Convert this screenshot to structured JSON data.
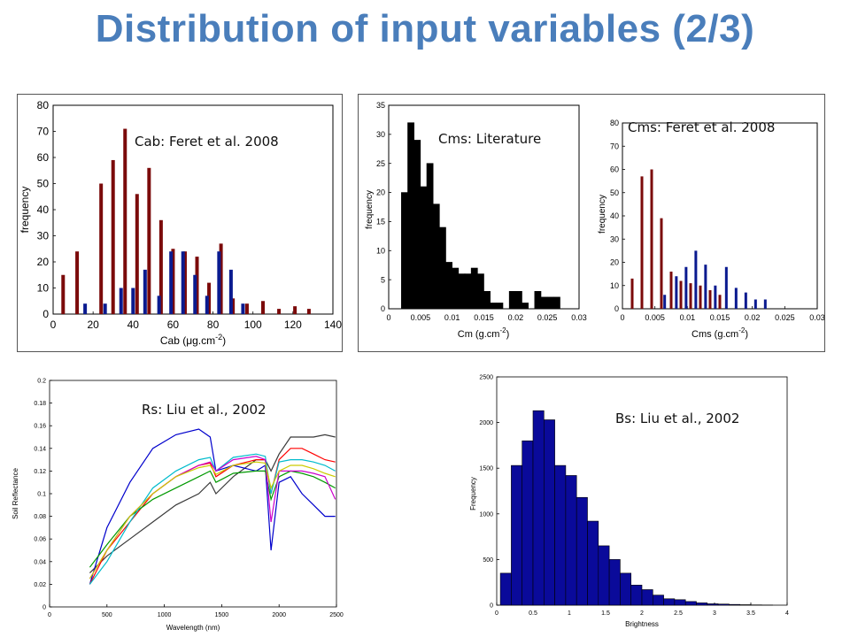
{
  "title": "Distribution of input variables (2/3)",
  "colors": {
    "title": "#4a7ebb",
    "red": "#7b0a0a",
    "blue": "#0a1a8f",
    "black": "#000000"
  },
  "chart_data": [
    {
      "id": "cab",
      "type": "bar",
      "annotation": "Cab: Feret et al. 2008",
      "xlabel": "Cab (μg.cm",
      "xlabel_sup": "-2",
      "xlabel_end": ")",
      "ylabel": "frequency",
      "xlim": [
        0,
        140
      ],
      "ylim": [
        0,
        80
      ],
      "xticks": [
        0,
        20,
        40,
        60,
        80,
        100,
        120,
        140
      ],
      "yticks": [
        0,
        10,
        20,
        30,
        40,
        50,
        60,
        70,
        80
      ],
      "series": [
        {
          "color": "#7b0a0a",
          "x": [
            5,
            12,
            24,
            30,
            36,
            42,
            48,
            54,
            60,
            66,
            72,
            78,
            84,
            90,
            97,
            105,
            113,
            121,
            128
          ],
          "values": [
            15,
            24,
            50,
            59,
            71,
            46,
            56,
            36,
            25,
            24,
            22,
            12,
            27,
            6,
            4,
            5,
            2,
            3,
            2
          ]
        },
        {
          "color": "#0a1a8f",
          "x": [
            16,
            26,
            34,
            40,
            46,
            53,
            59,
            65,
            71,
            77,
            83,
            89,
            95
          ],
          "values": [
            4,
            4,
            10,
            10,
            17,
            7,
            24,
            24,
            15,
            7,
            24,
            17,
            4
          ]
        }
      ]
    },
    {
      "id": "cms-lit",
      "type": "bar",
      "annotation": "Cms: Literature",
      "xlabel": "Cm (g.cm",
      "xlabel_sup": "-2",
      "xlabel_end": ")",
      "ylabel": "frequency",
      "xlim": [
        0,
        0.03
      ],
      "ylim": [
        0,
        35
      ],
      "xticks": [
        0,
        0.005,
        0.01,
        0.015,
        0.02,
        0.025,
        0.03
      ],
      "xticklabels": [
        "0",
        "0.005",
        "0.01",
        "0.015",
        "0.02",
        "0.025",
        "0.03"
      ],
      "yticks": [
        0,
        5,
        10,
        15,
        20,
        25,
        30,
        35
      ],
      "bin_edges": [
        0.002,
        0.003,
        0.004,
        0.005,
        0.006,
        0.007,
        0.008,
        0.009,
        0.01,
        0.011,
        0.012,
        0.013,
        0.014,
        0.015,
        0.016,
        0.017,
        0.018,
        0.019,
        0.02,
        0.021,
        0.022,
        0.023,
        0.024,
        0.025,
        0.026,
        0.027
      ],
      "values": [
        20,
        32,
        29,
        21,
        25,
        18,
        14,
        8,
        7,
        6,
        6,
        7,
        6,
        3,
        1,
        1,
        0,
        3,
        3,
        1,
        0,
        3,
        2,
        2,
        2
      ],
      "series": [
        {
          "color": "#000000"
        }
      ]
    },
    {
      "id": "cms-feret",
      "type": "bar",
      "annotation": "Cms: Feret et al. 2008",
      "xlabel": "Cms (g.cm",
      "xlabel_sup": "-2",
      "xlabel_end": ")",
      "ylabel": "frequency",
      "xlim": [
        0,
        0.03
      ],
      "ylim": [
        0,
        80
      ],
      "xticks": [
        0,
        0.005,
        0.01,
        0.015,
        0.02,
        0.025,
        0.03
      ],
      "xticklabels": [
        "0",
        "0.005",
        "0.01",
        "0.015",
        "0.02",
        "0.025",
        "0.03"
      ],
      "yticks": [
        0,
        10,
        20,
        30,
        40,
        50,
        60,
        70,
        80
      ],
      "series": [
        {
          "color": "#7b0a0a",
          "x": [
            0.0015,
            0.003,
            0.0045,
            0.006,
            0.0075,
            0.009,
            0.0105,
            0.012,
            0.0135,
            0.015
          ],
          "values": [
            13,
            57,
            60,
            39,
            16,
            12,
            11,
            10,
            8,
            6
          ]
        },
        {
          "color": "#0a1a8f",
          "x": [
            0.0065,
            0.0083,
            0.0098,
            0.0113,
            0.0128,
            0.0143,
            0.016,
            0.0175,
            0.019,
            0.0205,
            0.022
          ],
          "values": [
            6,
            14,
            18,
            25,
            19,
            10,
            18,
            9,
            7,
            4,
            4
          ]
        }
      ]
    },
    {
      "id": "rs",
      "type": "line",
      "annotation": "Rs: Liu et al., 2002",
      "xlabel": "Wavelength (nm)",
      "ylabel": "Soil Reflectance",
      "xlim": [
        0,
        2500
      ],
      "ylim": [
        0,
        0.2
      ],
      "xticks": [
        0,
        500,
        1000,
        1500,
        2000,
        2500
      ],
      "yticks": [
        0,
        0.02,
        0.04,
        0.06,
        0.08,
        0.1,
        0.12,
        0.14,
        0.16,
        0.18,
        0.2
      ],
      "yticklabels": [
        "0",
        "0.02",
        "0.04",
        "0.06",
        "0.08",
        "0.1",
        "0.12",
        "0.14",
        "0.16",
        "0.18",
        "0.2"
      ],
      "x": [
        350,
        500,
        700,
        900,
        1100,
        1300,
        1400,
        1450,
        1600,
        1800,
        1880,
        1930,
        2000,
        2100,
        2200,
        2300,
        2400,
        2490
      ],
      "series": [
        {
          "color": "#3a3a3a",
          "values": [
            0.03,
            0.045,
            0.06,
            0.075,
            0.09,
            0.1,
            0.11,
            0.1,
            0.115,
            0.13,
            0.13,
            0.12,
            0.135,
            0.15,
            0.15,
            0.15,
            0.152,
            0.15
          ]
        },
        {
          "color": "#0000cc",
          "values": [
            0.02,
            0.07,
            0.11,
            0.14,
            0.152,
            0.157,
            0.15,
            0.12,
            0.125,
            0.12,
            0.125,
            0.05,
            0.11,
            0.115,
            0.1,
            0.09,
            0.08,
            0.08
          ]
        },
        {
          "color": "#ff0000",
          "values": [
            0.02,
            0.05,
            0.075,
            0.1,
            0.115,
            0.125,
            0.127,
            0.115,
            0.125,
            0.13,
            0.13,
            0.1,
            0.13,
            0.14,
            0.14,
            0.135,
            0.13,
            0.128
          ]
        },
        {
          "color": "#009900",
          "values": [
            0.035,
            0.055,
            0.08,
            0.095,
            0.105,
            0.115,
            0.12,
            0.11,
            0.118,
            0.12,
            0.12,
            0.095,
            0.115,
            0.12,
            0.118,
            0.115,
            0.11,
            0.105
          ]
        },
        {
          "color": "#00bbcc",
          "values": [
            0.02,
            0.04,
            0.075,
            0.105,
            0.12,
            0.13,
            0.132,
            0.12,
            0.132,
            0.135,
            0.133,
            0.1,
            0.128,
            0.13,
            0.13,
            0.128,
            0.125,
            0.12
          ]
        },
        {
          "color": "#cc00cc",
          "values": [
            0.025,
            0.05,
            0.08,
            0.1,
            0.115,
            0.125,
            0.128,
            0.12,
            0.13,
            0.133,
            0.13,
            0.075,
            0.12,
            0.12,
            0.12,
            0.118,
            0.115,
            0.095
          ]
        },
        {
          "color": "#cccc00",
          "values": [
            0.025,
            0.05,
            0.08,
            0.1,
            0.115,
            0.123,
            0.125,
            0.117,
            0.125,
            0.128,
            0.127,
            0.105,
            0.12,
            0.125,
            0.125,
            0.122,
            0.118,
            0.115
          ]
        }
      ]
    },
    {
      "id": "bs",
      "type": "bar",
      "annotation": "Bs: Liu et al., 2002",
      "xlabel": "Brightness",
      "ylabel": "Frequency",
      "xlim": [
        0,
        4
      ],
      "ylim": [
        0,
        2500
      ],
      "xticks": [
        0,
        0.5,
        1,
        1.5,
        2,
        2.5,
        3,
        3.5,
        4
      ],
      "xticklabels": [
        "0",
        "0.5",
        "1",
        "1.5",
        "2",
        "2.5",
        "3",
        "3.5",
        "4"
      ],
      "yticks": [
        0,
        500,
        1000,
        1500,
        2000,
        2500
      ],
      "bin_edges": [
        0.05,
        0.2,
        0.35,
        0.5,
        0.65,
        0.8,
        0.95,
        1.1,
        1.25,
        1.4,
        1.55,
        1.7,
        1.85,
        2.0,
        2.15,
        2.3,
        2.45,
        2.6,
        2.75,
        2.9,
        3.05,
        3.2,
        3.35,
        3.5,
        3.65,
        3.8
      ],
      "values": [
        350,
        1530,
        1800,
        2130,
        2030,
        1530,
        1420,
        1180,
        920,
        650,
        500,
        350,
        220,
        170,
        110,
        70,
        60,
        40,
        25,
        15,
        12,
        8,
        5,
        3,
        2
      ],
      "series": [
        {
          "color": "#0a0a9a"
        }
      ]
    }
  ]
}
